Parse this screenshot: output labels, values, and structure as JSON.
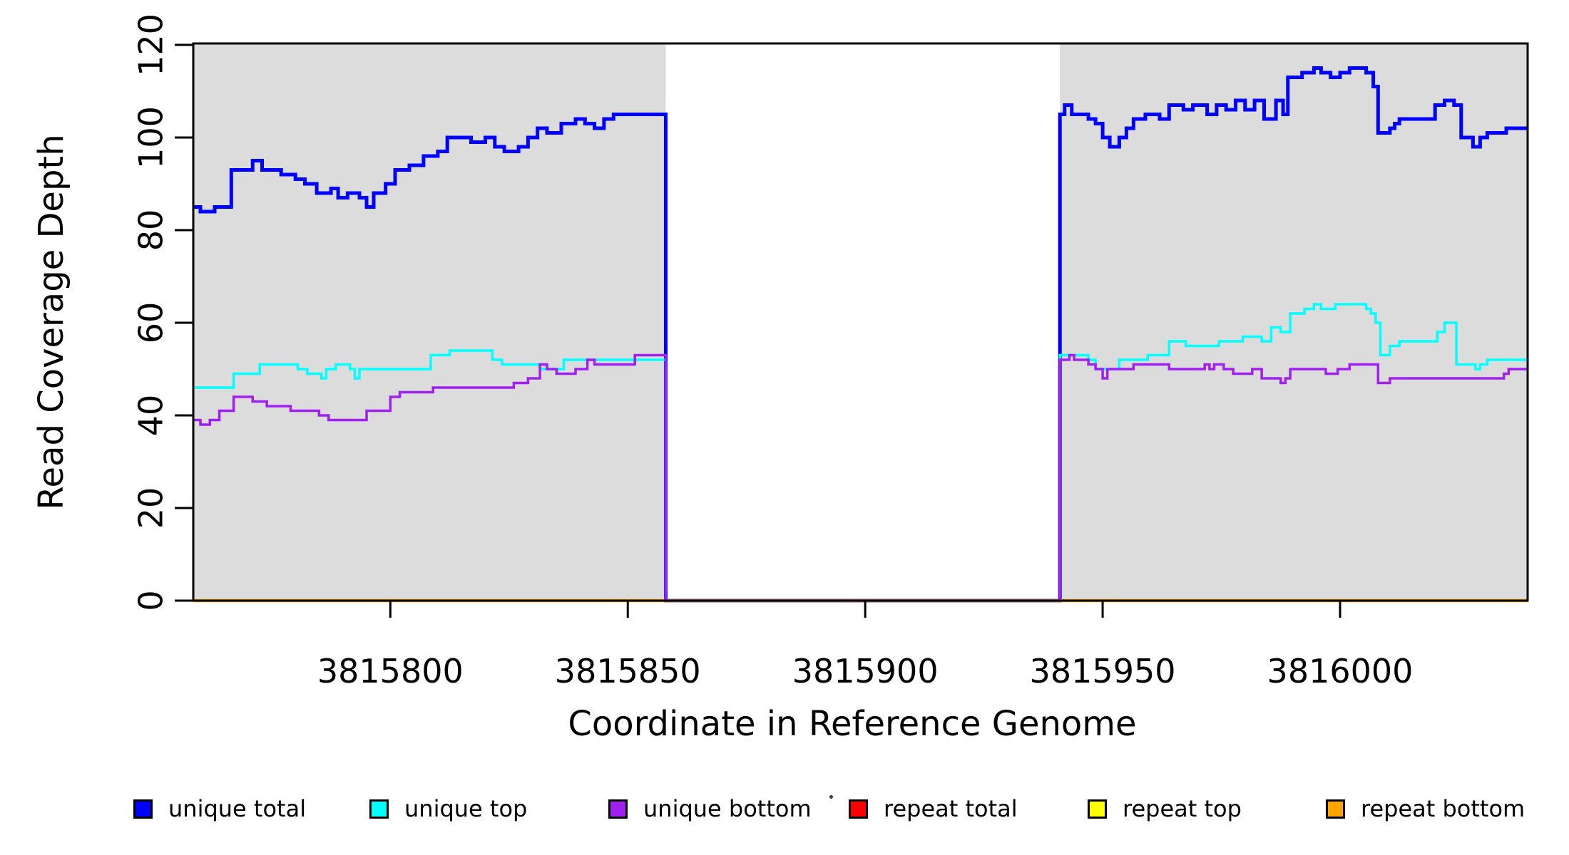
{
  "chart_data": {
    "type": "line",
    "style": "step",
    "title": "",
    "xlabel": "Coordinate in Reference Genome",
    "ylabel": "Read Coverage Depth",
    "xlim": [
      3815758.5,
      3816039.5
    ],
    "ylim": [
      0,
      120
    ],
    "x_ticks": [
      3815800,
      3815850,
      3815900,
      3815950,
      3816000
    ],
    "x_tick_labels": [
      "3815800",
      "3815850",
      "3815900",
      "3815950",
      "3816000"
    ],
    "y_ticks": [
      0,
      20,
      40,
      60,
      80,
      100,
      120
    ],
    "y_tick_labels": [
      "0",
      "20",
      "40",
      "60",
      "80",
      "100",
      "120"
    ],
    "grid": false,
    "legend_position": "bottom",
    "shade_color": "#DCDCDC",
    "shaded_regions": [
      {
        "x0": 3815758.5,
        "x1": 3815858
      },
      {
        "x0": 3815941,
        "x1": 3816039.5
      }
    ],
    "coverage_gap": {
      "start": 3815858,
      "end": 3815941,
      "note": "all series drop to 0 inside gap"
    },
    "series": [
      {
        "name": "repeat total",
        "color": "#FF0000",
        "line_width": 3.5,
        "steps": [
          [
            3815758.5,
            0
          ]
        ]
      },
      {
        "name": "repeat top",
        "color": "#FFFF00",
        "line_width": 3.5,
        "steps": [
          [
            3815758.5,
            0
          ]
        ]
      },
      {
        "name": "unique total",
        "color": "#0000FF",
        "line_width": 5,
        "steps": [
          [
            3815758.5,
            85
          ],
          [
            3815760,
            84
          ],
          [
            3815763,
            85
          ],
          [
            3815766.5,
            93
          ],
          [
            3815771,
            95
          ],
          [
            3815773,
            93
          ],
          [
            3815777,
            92
          ],
          [
            3815780,
            91
          ],
          [
            3815782,
            90
          ],
          [
            3815784.5,
            88
          ],
          [
            3815787.5,
            89
          ],
          [
            3815789,
            87
          ],
          [
            3815791,
            88
          ],
          [
            3815793.5,
            87
          ],
          [
            3815795,
            85
          ],
          [
            3815796.5,
            88
          ],
          [
            3815799,
            90
          ],
          [
            3815801,
            93
          ],
          [
            3815804,
            94
          ],
          [
            3815807,
            96
          ],
          [
            3815810,
            97
          ],
          [
            3815812,
            100
          ],
          [
            3815817,
            99
          ],
          [
            3815820,
            100
          ],
          [
            3815822,
            98
          ],
          [
            3815824,
            97
          ],
          [
            3815827,
            98
          ],
          [
            3815829,
            100
          ],
          [
            3815831,
            102
          ],
          [
            3815833,
            101
          ],
          [
            3815836,
            103
          ],
          [
            3815839,
            104
          ],
          [
            3815841,
            103
          ],
          [
            3815843,
            102
          ],
          [
            3815845,
            104
          ],
          [
            3815847,
            105
          ],
          [
            3815858,
            0
          ],
          [
            3815941,
            105
          ],
          [
            3815942,
            107
          ],
          [
            3815943.5,
            105
          ],
          [
            3815947,
            104
          ],
          [
            3815948.5,
            103
          ],
          [
            3815950,
            100
          ],
          [
            3815951.5,
            98
          ],
          [
            3815953.5,
            100
          ],
          [
            3815955,
            102
          ],
          [
            3815956.5,
            104
          ],
          [
            3815959,
            105
          ],
          [
            3815962,
            104
          ],
          [
            3815964,
            107
          ],
          [
            3815967,
            106
          ],
          [
            3815969,
            107
          ],
          [
            3815972,
            105
          ],
          [
            3815974,
            107
          ],
          [
            3815976,
            106
          ],
          [
            3815978,
            108
          ],
          [
            3815980,
            106
          ],
          [
            3815982,
            108
          ],
          [
            3815984,
            104
          ],
          [
            3815986.5,
            108
          ],
          [
            3815988,
            105
          ],
          [
            3815989,
            113
          ],
          [
            3815992,
            114
          ],
          [
            3815994.5,
            115
          ],
          [
            3815996,
            114
          ],
          [
            3815998,
            113
          ],
          [
            3816000,
            114
          ],
          [
            3816002,
            115
          ],
          [
            3816005.5,
            114
          ],
          [
            3816007,
            111
          ],
          [
            3816008,
            101
          ],
          [
            3816010.5,
            102
          ],
          [
            3816011.5,
            103
          ],
          [
            3816012.5,
            104
          ],
          [
            3816020,
            107
          ],
          [
            3816022,
            108
          ],
          [
            3816024,
            107
          ],
          [
            3816025.5,
            100
          ],
          [
            3816028,
            98
          ],
          [
            3816029.5,
            100
          ],
          [
            3816031,
            101
          ],
          [
            3816035,
            102
          ]
        ]
      },
      {
        "name": "unique top",
        "color": "#00FFFF",
        "line_width": 3.5,
        "steps": [
          [
            3815758.5,
            46
          ],
          [
            3815767,
            49
          ],
          [
            3815772.5,
            51
          ],
          [
            3815780.5,
            50
          ],
          [
            3815782.5,
            49
          ],
          [
            3815785.5,
            48
          ],
          [
            3815786.5,
            50
          ],
          [
            3815788.5,
            51
          ],
          [
            3815791.5,
            50
          ],
          [
            3815792.5,
            48
          ],
          [
            3815793.5,
            50
          ],
          [
            3815808.5,
            53
          ],
          [
            3815812.5,
            54
          ],
          [
            3815821.5,
            52
          ],
          [
            3815823.5,
            51
          ],
          [
            3815831.5,
            50
          ],
          [
            3815836.5,
            52
          ],
          [
            3815858,
            0
          ],
          [
            3815941,
            53
          ],
          [
            3815947,
            52
          ],
          [
            3815948.5,
            50
          ],
          [
            3815953.5,
            52
          ],
          [
            3815959.5,
            53
          ],
          [
            3815964,
            56
          ],
          [
            3815967.5,
            55
          ],
          [
            3815974.5,
            56
          ],
          [
            3815979.5,
            57
          ],
          [
            3815983.5,
            56
          ],
          [
            3815985.5,
            59
          ],
          [
            3815987.5,
            58
          ],
          [
            3815989.5,
            62
          ],
          [
            3815992.5,
            63
          ],
          [
            3815994.5,
            64
          ],
          [
            3815996,
            63
          ],
          [
            3815999,
            64
          ],
          [
            3816005.5,
            63
          ],
          [
            3816006.5,
            62
          ],
          [
            3816007.5,
            60
          ],
          [
            3816008.5,
            53
          ],
          [
            3816010.5,
            55
          ],
          [
            3816012.5,
            56
          ],
          [
            3816020.5,
            58
          ],
          [
            3816022,
            60
          ],
          [
            3816024.5,
            51
          ],
          [
            3816028.5,
            50
          ],
          [
            3816029.5,
            51
          ],
          [
            3816031,
            52
          ]
        ]
      },
      {
        "name": "repeat bottom",
        "color": "#FFA500",
        "line_width": 4.5,
        "steps": [
          [
            3815758.5,
            0
          ]
        ]
      },
      {
        "name": "unique bottom",
        "color": "#A020F0",
        "line_width": 3.5,
        "steps": [
          [
            3815758.5,
            39
          ],
          [
            3815760,
            38
          ],
          [
            3815762,
            39
          ],
          [
            3815764,
            41
          ],
          [
            3815767,
            44
          ],
          [
            3815771,
            43
          ],
          [
            3815774,
            42
          ],
          [
            3815779,
            41
          ],
          [
            3815785,
            40
          ],
          [
            3815787,
            39
          ],
          [
            3815795,
            41
          ],
          [
            3815800,
            44
          ],
          [
            3815802,
            45
          ],
          [
            3815809,
            46
          ],
          [
            3815826,
            47
          ],
          [
            3815829,
            48
          ],
          [
            3815831.5,
            51
          ],
          [
            3815833,
            50
          ],
          [
            3815835,
            49
          ],
          [
            3815839,
            50
          ],
          [
            3815841.5,
            52
          ],
          [
            3815843,
            51
          ],
          [
            3815851.5,
            53
          ],
          [
            3815858,
            0
          ],
          [
            3815941,
            52
          ],
          [
            3815943,
            53
          ],
          [
            3815944,
            52
          ],
          [
            3815947,
            51
          ],
          [
            3815948.5,
            50
          ],
          [
            3815950,
            48
          ],
          [
            3815951,
            50
          ],
          [
            3815956.5,
            51
          ],
          [
            3815964,
            50
          ],
          [
            3815971.5,
            51
          ],
          [
            3815972.5,
            50
          ],
          [
            3815973.5,
            51
          ],
          [
            3815975.5,
            50
          ],
          [
            3815977.5,
            49
          ],
          [
            3815981.5,
            50
          ],
          [
            3815983.5,
            48
          ],
          [
            3815987.5,
            47
          ],
          [
            3815988.5,
            48
          ],
          [
            3815989.5,
            50
          ],
          [
            3815997,
            49
          ],
          [
            3815999.5,
            50
          ],
          [
            3816002,
            51
          ],
          [
            3816008,
            47
          ],
          [
            3816010.5,
            48
          ],
          [
            3816034.5,
            49
          ],
          [
            3816035.5,
            50
          ]
        ]
      }
    ]
  },
  "legend": {
    "items": [
      {
        "label": "unique total",
        "color": "#0000FF"
      },
      {
        "label": "unique top",
        "color": "#00FFFF"
      },
      {
        "label": "unique bottom",
        "color": "#A020F0"
      },
      {
        "label": "repeat total",
        "color": "#FF0000"
      },
      {
        "label": "repeat top",
        "color": "#FFFF00"
      },
      {
        "label": "repeat bottom",
        "color": "#FFA500"
      }
    ]
  }
}
